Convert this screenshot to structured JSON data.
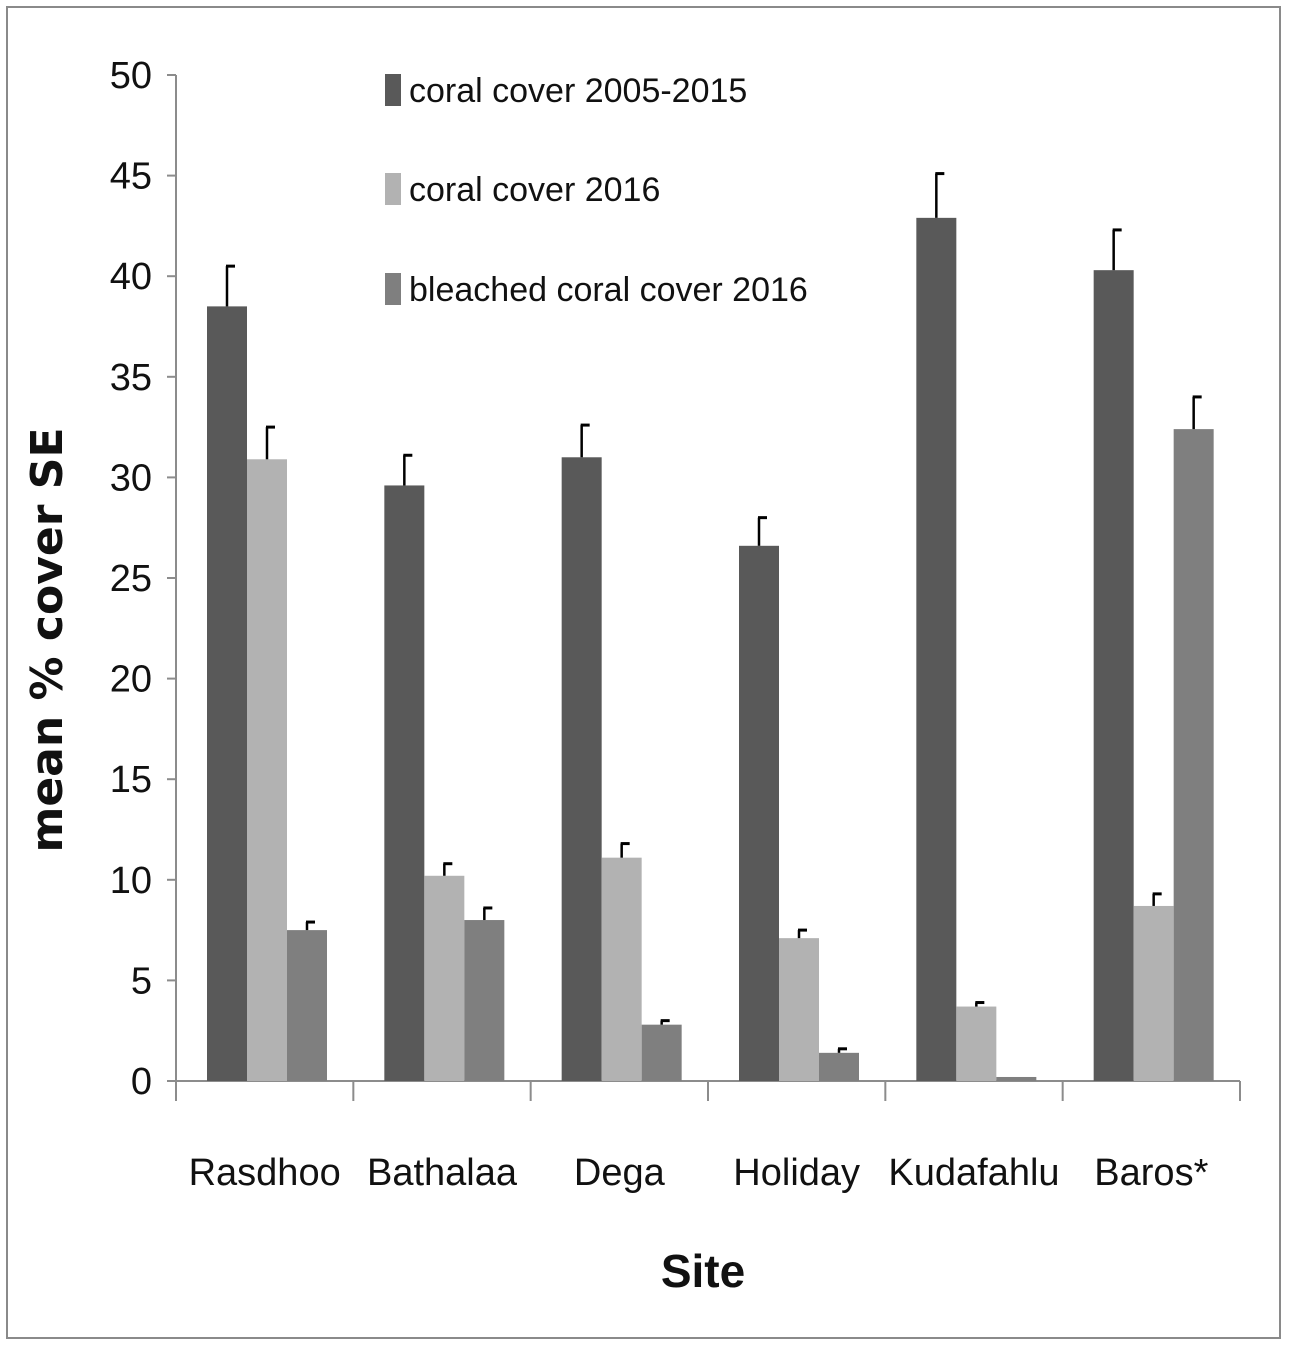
{
  "chart_data": {
    "type": "bar",
    "title": "",
    "xlabel": "Site",
    "ylabel": "mean % cover SE",
    "ylim": [
      0,
      50
    ],
    "yticks": [
      0,
      5,
      10,
      15,
      20,
      25,
      30,
      35,
      40,
      45,
      50
    ],
    "grid": false,
    "legend_position": "top-center",
    "categories": [
      "Rasdhoo",
      "Bathalaa",
      "Dega",
      "Holiday",
      "Kudafahlu",
      "Baros*"
    ],
    "series": [
      {
        "name": "coral cover 2005-2015",
        "color": "#595959",
        "values": [
          38.5,
          29.6,
          31.0,
          26.6,
          42.9,
          40.3
        ],
        "errors": [
          2.0,
          1.5,
          1.6,
          1.4,
          2.2,
          2.0
        ]
      },
      {
        "name": "coral cover 2016",
        "color": "#b2b2b2",
        "values": [
          30.9,
          10.2,
          11.1,
          7.1,
          3.7,
          8.7
        ],
        "errors": [
          1.6,
          0.6,
          0.7,
          0.4,
          0.2,
          0.6
        ]
      },
      {
        "name": "bleached coral cover 2016",
        "color": "#7f7f7f",
        "values": [
          7.5,
          8.0,
          2.8,
          1.4,
          0.2,
          32.4
        ],
        "errors": [
          0.4,
          0.6,
          0.2,
          0.2,
          0.0,
          1.6
        ]
      }
    ]
  }
}
